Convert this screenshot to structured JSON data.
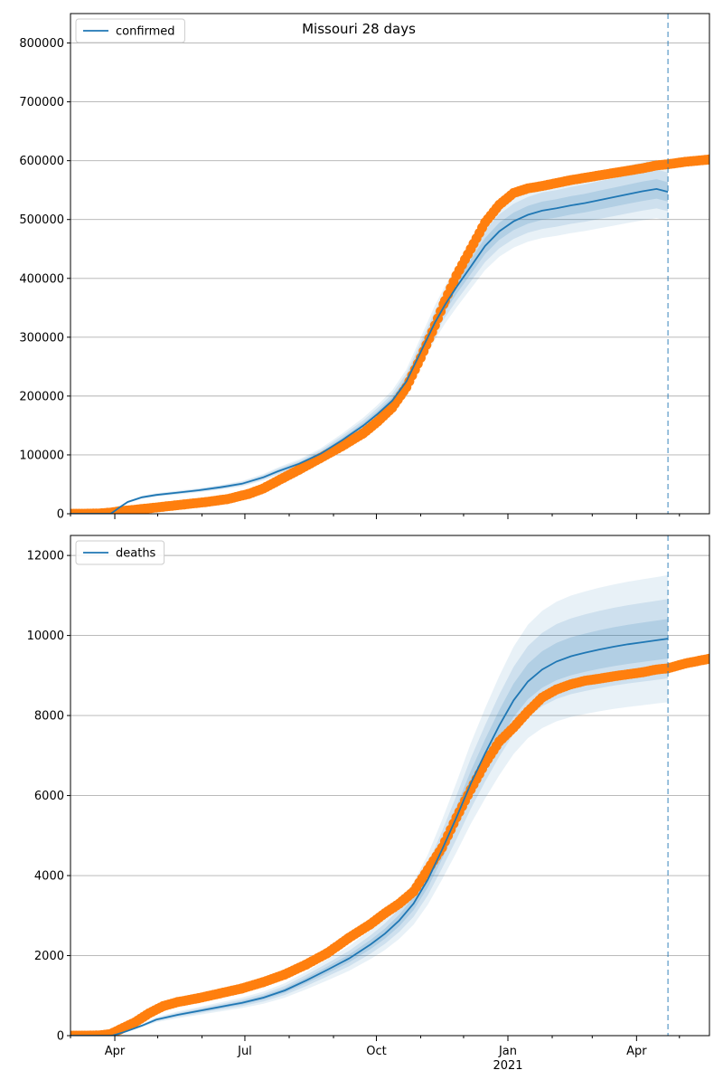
{
  "figure": {
    "title": "Missouri 28 days"
  },
  "colors": {
    "model": "#1f77b4",
    "observed": "#ff7f0e",
    "band": "#1f77b4",
    "grid": "#b0b0b0",
    "forecast_line": "#1f77b4"
  },
  "chart_data": [
    {
      "type": "line",
      "name": "confirmed-panel",
      "legend": {
        "label": "confirmed",
        "placement": "top-left"
      },
      "x_unit": "days since 2020-03-01",
      "xlim": [
        0,
        447
      ],
      "ylim": [
        0,
        850000
      ],
      "yticks": [
        0,
        100000,
        200000,
        300000,
        400000,
        500000,
        600000,
        700000,
        800000
      ],
      "yticklabels": [
        "0",
        "100000",
        "200000",
        "300000",
        "400000",
        "500000",
        "600000",
        "700000",
        "800000"
      ],
      "grid": "horizontal",
      "forecast_start_x": 418,
      "model": {
        "x": [
          0,
          28,
          30,
          35,
          40,
          50,
          60,
          75,
          90,
          105,
          120,
          135,
          145,
          160,
          175,
          190,
          205,
          215,
          225,
          235,
          245,
          255,
          262,
          270,
          280,
          290,
          300,
          310,
          320,
          330,
          340,
          350,
          360,
          370,
          380,
          390,
          400,
          410,
          418
        ],
        "median": [
          0,
          0,
          3000,
          12000,
          20000,
          28000,
          32000,
          36000,
          40000,
          45000,
          51000,
          62000,
          72000,
          85000,
          102000,
          125000,
          150000,
          170000,
          192000,
          225000,
          275000,
          325000,
          355000,
          385000,
          420000,
          455000,
          480000,
          497000,
          508000,
          515000,
          519000,
          524000,
          528000,
          533000,
          538000,
          543000,
          548000,
          552000,
          547000
        ],
        "band_inner_pct": 3,
        "band_mid_pct": 6,
        "band_outer_pct": 9
      },
      "observed": {
        "x": [
          0,
          10,
          20,
          28,
          35,
          50,
          65,
          80,
          95,
          110,
          125,
          135,
          145,
          160,
          175,
          190,
          205,
          215,
          225,
          235,
          245,
          255,
          262,
          270,
          280,
          290,
          300,
          310,
          320,
          330,
          340,
          350,
          360,
          370,
          380,
          390,
          400,
          410,
          418,
          430,
          447
        ],
        "y": [
          0,
          0,
          500,
          2000,
          4500,
          8000,
          12000,
          16000,
          20000,
          25000,
          34000,
          43000,
          56000,
          75000,
          95000,
          115000,
          137000,
          157000,
          180000,
          215000,
          265000,
          320000,
          362000,
          405000,
          450000,
          495000,
          525000,
          545000,
          553000,
          557000,
          562000,
          567000,
          571000,
          575000,
          579000,
          583000,
          587000,
          592000,
          594000,
          598000,
          602000
        ]
      }
    },
    {
      "type": "line",
      "name": "deaths-panel",
      "legend": {
        "label": "deaths",
        "placement": "top-left"
      },
      "x_unit": "days since 2020-03-01",
      "xlim": [
        0,
        447
      ],
      "ylim": [
        0,
        12500
      ],
      "yticks": [
        0,
        2000,
        4000,
        6000,
        8000,
        10000,
        12000
      ],
      "yticklabels": [
        "0",
        "2000",
        "4000",
        "6000",
        "8000",
        "10000",
        "12000"
      ],
      "grid": "horizontal",
      "forecast_start_x": 418,
      "model": {
        "x": [
          0,
          28,
          30,
          35,
          40,
          50,
          60,
          75,
          90,
          105,
          120,
          135,
          150,
          165,
          180,
          195,
          210,
          220,
          230,
          240,
          250,
          260,
          270,
          280,
          290,
          300,
          310,
          320,
          330,
          340,
          350,
          360,
          370,
          380,
          390,
          400,
          410,
          418
        ],
        "median": [
          0,
          0,
          10,
          60,
          120,
          250,
          400,
          520,
          620,
          720,
          820,
          950,
          1130,
          1380,
          1650,
          1930,
          2280,
          2550,
          2880,
          3300,
          3900,
          4650,
          5450,
          6300,
          7050,
          7750,
          8380,
          8850,
          9150,
          9350,
          9480,
          9570,
          9650,
          9720,
          9780,
          9830,
          9880,
          9920
        ],
        "band_inner_pct": 5,
        "band_mid_pct": 10,
        "band_outer_pct": 16
      },
      "observed": {
        "x": [
          0,
          10,
          20,
          28,
          35,
          45,
          55,
          65,
          75,
          90,
          105,
          120,
          135,
          150,
          165,
          180,
          195,
          210,
          220,
          230,
          240,
          250,
          260,
          270,
          280,
          290,
          300,
          310,
          320,
          330,
          340,
          350,
          360,
          370,
          380,
          390,
          400,
          410,
          418,
          430,
          447
        ],
        "y": [
          0,
          0,
          5,
          40,
          160,
          330,
          560,
          740,
          840,
          940,
          1060,
          1180,
          1340,
          1530,
          1780,
          2070,
          2450,
          2790,
          3060,
          3300,
          3600,
          4150,
          4700,
          5450,
          6150,
          6800,
          7350,
          7700,
          8100,
          8450,
          8650,
          8780,
          8870,
          8920,
          8980,
          9030,
          9080,
          9150,
          9180,
          9300,
          9420
        ]
      }
    }
  ],
  "x_axis": {
    "ticks": [
      31,
      122,
      214,
      306,
      396
    ],
    "ticklabels": [
      "Apr",
      "Jul",
      "Oct",
      "Jan",
      "Apr"
    ],
    "minor_ticks": [
      0,
      61,
      92,
      153,
      184,
      245,
      275,
      337,
      365,
      426
    ],
    "year_label": "2021",
    "year_label_x": 306
  }
}
